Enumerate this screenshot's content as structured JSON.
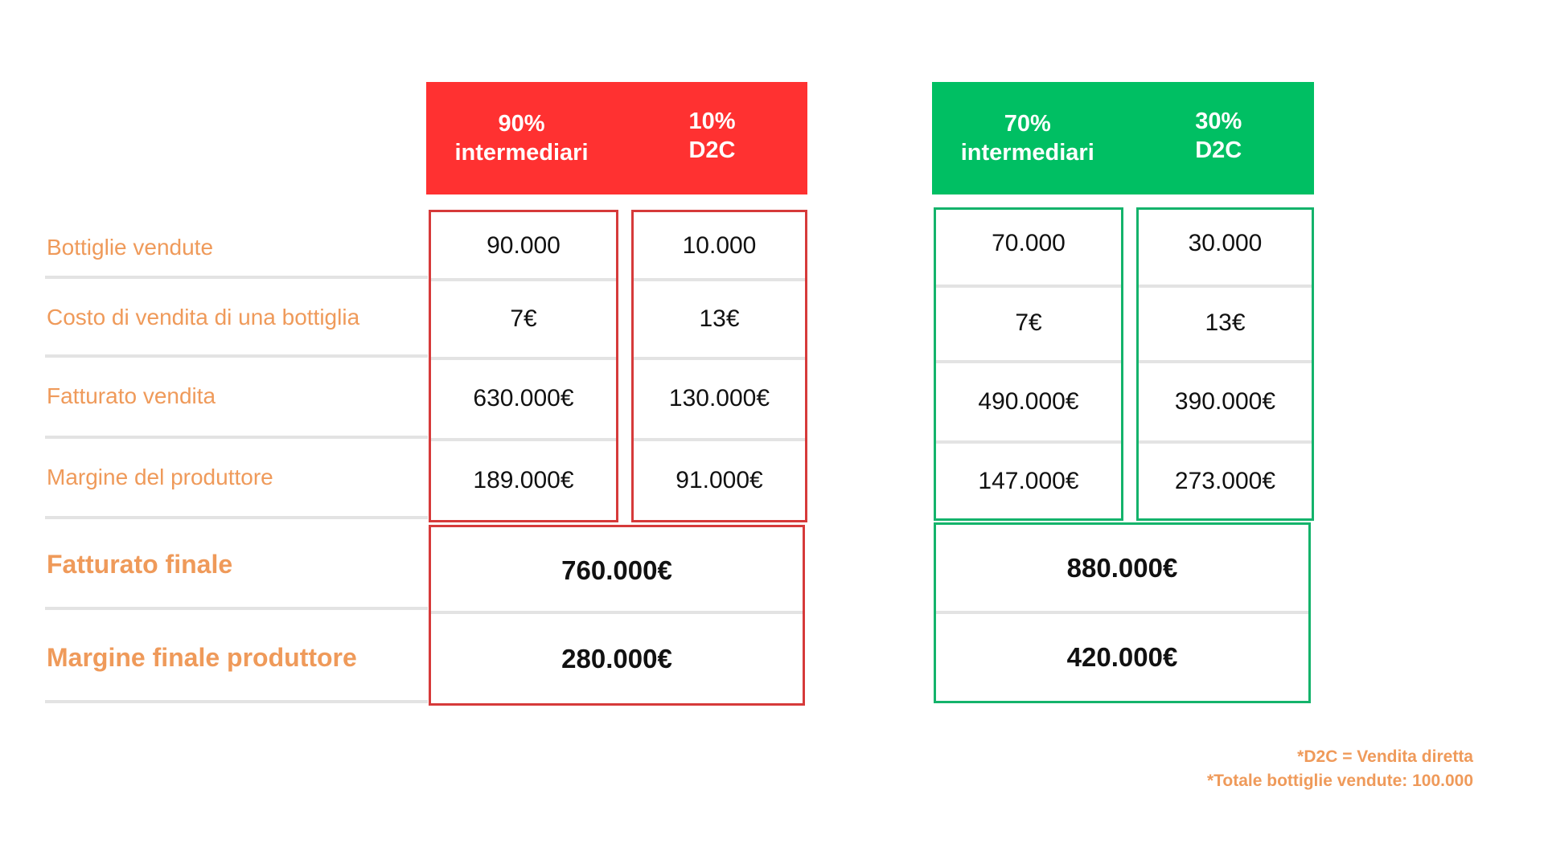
{
  "chart_data": {
    "type": "table",
    "row_labels": [
      "Bottiglie vendute",
      "Costo di vendita di una bottiglia",
      "Fatturato vendita",
      "Margine del produttore",
      "Fatturato finale",
      "Margine finale produttore"
    ],
    "scenarios": [
      {
        "color": "#ff3131",
        "columns": [
          {
            "header_pct": "90%",
            "header_name": "intermediari",
            "values": [
              "90.000",
              "7€",
              "630.000€",
              "189.000€"
            ]
          },
          {
            "header_pct": "10%",
            "header_name": "D2C",
            "values": [
              "10.000",
              "13€",
              "130.000€",
              "91.000€"
            ]
          }
        ],
        "totals": [
          "760.000€",
          "280.000€"
        ]
      },
      {
        "color": "#00bf63",
        "columns": [
          {
            "header_pct": "70%",
            "header_name": "intermediari",
            "values": [
              "70.000",
              "7€",
              "490.000€",
              "147.000€"
            ]
          },
          {
            "header_pct": "30%",
            "header_name": "D2C",
            "values": [
              "30.000",
              "13€",
              "390.000€",
              "273.000€"
            ]
          }
        ],
        "totals": [
          "880.000€",
          "420.000€"
        ]
      }
    ],
    "notes": [
      "*D2C = Vendita diretta",
      "*Totale bottiglie vendute: 100.000"
    ]
  }
}
